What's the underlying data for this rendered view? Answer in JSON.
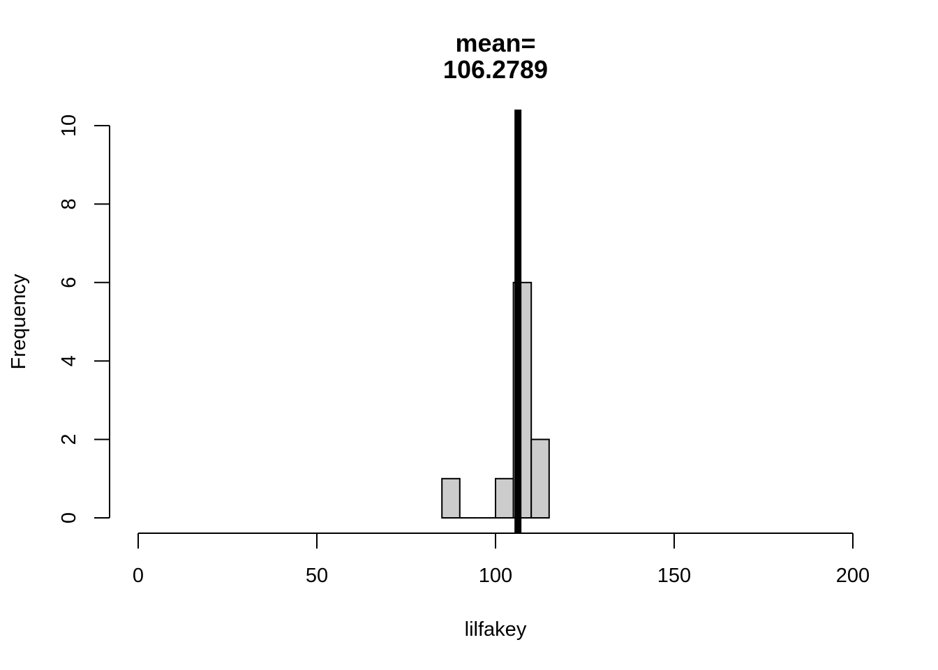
{
  "chart_data": {
    "type": "bar",
    "title": [
      "mean=",
      "106.2789"
    ],
    "xlabel": "lilfakey",
    "ylabel": "Frequency",
    "xlim": [
      0,
      200
    ],
    "ylim": [
      0,
      10
    ],
    "x_ticks": [
      "0",
      "50",
      "100",
      "150",
      "200"
    ],
    "y_ticks": [
      "0",
      "2",
      "4",
      "6",
      "8",
      "10"
    ],
    "bins": [
      {
        "start": 85,
        "end": 90,
        "count": 1
      },
      {
        "start": 90,
        "end": 95,
        "count": 0
      },
      {
        "start": 95,
        "end": 100,
        "count": 0
      },
      {
        "start": 100,
        "end": 105,
        "count": 1
      },
      {
        "start": 105,
        "end": 110,
        "count": 6
      },
      {
        "start": 110,
        "end": 115,
        "count": 2
      }
    ],
    "mean_line": 106.2789,
    "bar_color": "#cccccc",
    "line_color": "#000000",
    "grid": false
  }
}
